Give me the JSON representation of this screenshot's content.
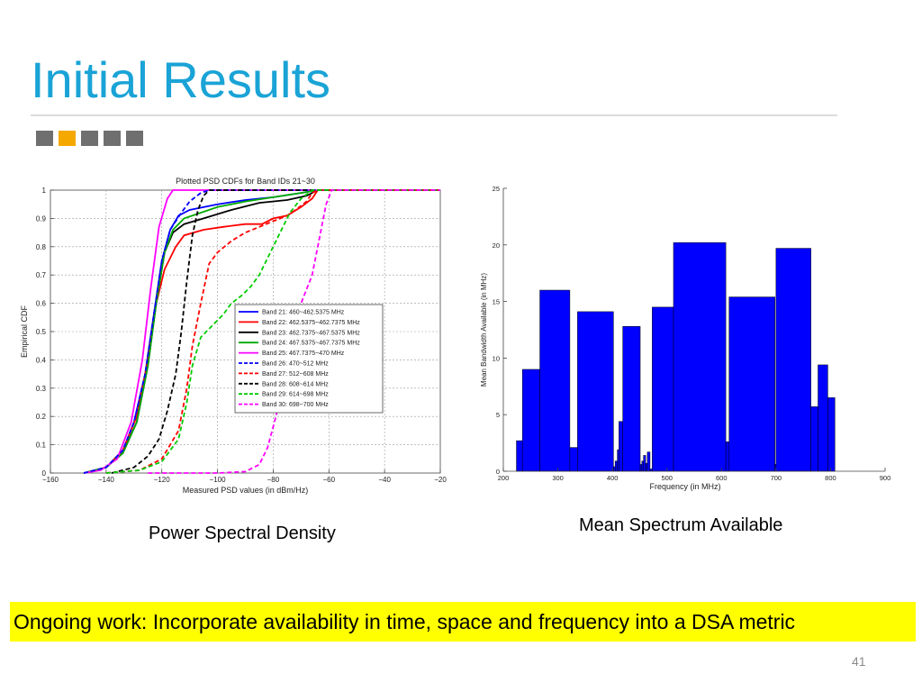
{
  "slide": {
    "title": "Initial Results",
    "left_caption": "Power Spectral Density",
    "right_caption": "Mean Spectrum Available",
    "banner": "Ongoing work: Incorporate availability in time, space and frequency into a DSA metric",
    "page_number": "41",
    "accent_color": "#1aa3d6",
    "square_colors": [
      "#6f6f6f",
      "#f5a800",
      "#6f6f6f",
      "#6f6f6f",
      "#6f6f6f"
    ]
  },
  "chart_data": [
    {
      "type": "line",
      "title": "Plotted PSD CDFs for Band IDs 21~30",
      "xlabel": "Measured PSD values (in dBm/Hz)",
      "ylabel": "Empirical CDF",
      "xlim": [
        -160,
        -20
      ],
      "ylim": [
        0,
        1
      ],
      "xticks": [
        "-160",
        "-140",
        "-120",
        "-100",
        "-80",
        "-60",
        "-40",
        "-20"
      ],
      "yticks": [
        "0",
        "0.1",
        "0.2",
        "0.3",
        "0.4",
        "0.5",
        "0.6",
        "0.7",
        "0.8",
        "0.9",
        "1"
      ],
      "grid": true,
      "legend_position": "center-right",
      "series": [
        {
          "name": "Band 21: 460~462.5375 MHz",
          "color": "#0000ff",
          "dash": "solid",
          "points": [
            [
              -148,
              0
            ],
            [
              -140,
              0.02
            ],
            [
              -134,
              0.08
            ],
            [
              -130,
              0.18
            ],
            [
              -126,
              0.35
            ],
            [
              -123,
              0.55
            ],
            [
              -120,
              0.75
            ],
            [
              -117,
              0.86
            ],
            [
              -114,
              0.91
            ],
            [
              -110,
              0.93
            ],
            [
              -100,
              0.95
            ],
            [
              -90,
              0.965
            ],
            [
              -80,
              0.975
            ],
            [
              -70,
              0.99
            ],
            [
              -64,
              1
            ],
            [
              -20,
              1
            ]
          ]
        },
        {
          "name": "Band 22: 462.5375~462.7375 MHz",
          "color": "#ff0000",
          "dash": "solid",
          "points": [
            [
              -148,
              0
            ],
            [
              -140,
              0.02
            ],
            [
              -134,
              0.08
            ],
            [
              -129,
              0.2
            ],
            [
              -125,
              0.4
            ],
            [
              -122,
              0.6
            ],
            [
              -119,
              0.72
            ],
            [
              -115,
              0.8
            ],
            [
              -112,
              0.84
            ],
            [
              -105,
              0.86
            ],
            [
              -98,
              0.87
            ],
            [
              -90,
              0.88
            ],
            [
              -84,
              0.88
            ],
            [
              -80,
              0.9
            ],
            [
              -75,
              0.91
            ],
            [
              -70,
              0.94
            ],
            [
              -66,
              0.97
            ],
            [
              -64,
              1
            ],
            [
              -20,
              1
            ]
          ]
        },
        {
          "name": "Band 23: 462.7375~467.5375 MHz",
          "color": "#000000",
          "dash": "solid",
          "points": [
            [
              -148,
              0
            ],
            [
              -140,
              0.02
            ],
            [
              -134,
              0.07
            ],
            [
              -129,
              0.18
            ],
            [
              -125,
              0.38
            ],
            [
              -122,
              0.6
            ],
            [
              -119,
              0.78
            ],
            [
              -116,
              0.85
            ],
            [
              -112,
              0.88
            ],
            [
              -105,
              0.9
            ],
            [
              -95,
              0.93
            ],
            [
              -85,
              0.955
            ],
            [
              -75,
              0.965
            ],
            [
              -68,
              0.98
            ],
            [
              -64,
              1
            ],
            [
              -20,
              1
            ]
          ]
        },
        {
          "name": "Band 24: 467.5375~467.7375 MHz",
          "color": "#00aa00",
          "dash": "solid",
          "points": [
            [
              -148,
              0
            ],
            [
              -140,
              0.02
            ],
            [
              -134,
              0.07
            ],
            [
              -129,
              0.18
            ],
            [
              -125,
              0.38
            ],
            [
              -122,
              0.6
            ],
            [
              -119,
              0.78
            ],
            [
              -116,
              0.86
            ],
            [
              -112,
              0.9
            ],
            [
              -100,
              0.94
            ],
            [
              -90,
              0.96
            ],
            [
              -80,
              0.975
            ],
            [
              -70,
              0.99
            ],
            [
              -64,
              1
            ],
            [
              -20,
              1
            ]
          ]
        },
        {
          "name": "Band 25: 467.7375~470 MHz",
          "color": "#ff00ff",
          "dash": "solid",
          "points": [
            [
              -148,
              0
            ],
            [
              -142,
              0.01
            ],
            [
              -136,
              0.05
            ],
            [
              -131,
              0.18
            ],
            [
              -127,
              0.4
            ],
            [
              -124,
              0.65
            ],
            [
              -121,
              0.87
            ],
            [
              -118,
              0.97
            ],
            [
              -116,
              1
            ],
            [
              -20,
              1
            ]
          ]
        },
        {
          "name": "Band 26: 470~512 MHz",
          "color": "#0000ff",
          "dash": "dashed",
          "points": [
            [
              -148,
              0
            ],
            [
              -140,
              0.02
            ],
            [
              -134,
              0.08
            ],
            [
              -130,
              0.18
            ],
            [
              -126,
              0.35
            ],
            [
              -123,
              0.55
            ],
            [
              -120,
              0.75
            ],
            [
              -117,
              0.86
            ],
            [
              -113,
              0.92
            ],
            [
              -110,
              0.96
            ],
            [
              -106,
              0.99
            ],
            [
              -103,
              1
            ],
            [
              -20,
              1
            ]
          ]
        },
        {
          "name": "Band 27: 512~608 MHz",
          "color": "#ff0000",
          "dash": "dashed",
          "points": [
            [
              -140,
              0
            ],
            [
              -128,
              0.01
            ],
            [
              -120,
              0.05
            ],
            [
              -114,
              0.15
            ],
            [
              -111,
              0.3
            ],
            [
              -109,
              0.45
            ],
            [
              -106,
              0.6
            ],
            [
              -103,
              0.74
            ],
            [
              -100,
              0.78
            ],
            [
              -95,
              0.82
            ],
            [
              -90,
              0.85
            ],
            [
              -85,
              0.87
            ],
            [
              -80,
              0.89
            ],
            [
              -75,
              0.91
            ],
            [
              -72,
              0.93
            ],
            [
              -68,
              0.96
            ],
            [
              -66,
              0.99
            ],
            [
              -64,
              1
            ],
            [
              -20,
              1
            ]
          ]
        },
        {
          "name": "Band 28: 608~614 MHz",
          "color": "#000000",
          "dash": "dashed",
          "points": [
            [
              -138,
              0
            ],
            [
              -130,
              0.02
            ],
            [
              -125,
              0.06
            ],
            [
              -121,
              0.12
            ],
            [
              -118,
              0.22
            ],
            [
              -115,
              0.35
            ],
            [
              -113,
              0.5
            ],
            [
              -111,
              0.68
            ],
            [
              -109,
              0.84
            ],
            [
              -107,
              0.93
            ],
            [
              -105,
              0.98
            ],
            [
              -103,
              1
            ],
            [
              -20,
              1
            ]
          ]
        },
        {
          "name": "Band 29: 614~698 MHz",
          "color": "#00cc00",
          "dash": "dashed",
          "points": [
            [
              -140,
              0
            ],
            [
              -128,
              0.01
            ],
            [
              -120,
              0.04
            ],
            [
              -114,
              0.12
            ],
            [
              -111,
              0.25
            ],
            [
              -109,
              0.38
            ],
            [
              -106,
              0.48
            ],
            [
              -102,
              0.52
            ],
            [
              -98,
              0.56
            ],
            [
              -95,
              0.6
            ],
            [
              -91,
              0.63
            ],
            [
              -88,
              0.66
            ],
            [
              -85,
              0.7
            ],
            [
              -82,
              0.76
            ],
            [
              -78,
              0.84
            ],
            [
              -74,
              0.92
            ],
            [
              -70,
              0.97
            ],
            [
              -66,
              1
            ],
            [
              -20,
              1
            ]
          ]
        },
        {
          "name": "Band 30: 698~700 MHz",
          "color": "#ff00ff",
          "dash": "dashed",
          "points": [
            [
              -125,
              0
            ],
            [
              -100,
              0
            ],
            [
              -90,
              0.005
            ],
            [
              -85,
              0.03
            ],
            [
              -82,
              0.09
            ],
            [
              -79,
              0.2
            ],
            [
              -76,
              0.35
            ],
            [
              -73,
              0.5
            ],
            [
              -70,
              0.6
            ],
            [
              -66,
              0.7
            ],
            [
              -63,
              0.85
            ],
            [
              -61,
              0.95
            ],
            [
              -59,
              1
            ],
            [
              -20,
              1
            ]
          ]
        }
      ]
    },
    {
      "type": "bar",
      "title": "",
      "xlabel": "Frequency (in MHz)",
      "ylabel": "Mean Bandwidth Available (in MHz)",
      "xlim": [
        200,
        900
      ],
      "ylim": [
        0,
        25
      ],
      "xticks": [
        "200",
        "300",
        "400",
        "500",
        "600",
        "700",
        "800",
        "900"
      ],
      "yticks": [
        "0",
        "5",
        "10",
        "15",
        "20",
        "25"
      ],
      "bar_color": "#0000ff",
      "bars": [
        [
          224,
          235,
          2.7
        ],
        [
          235,
          267,
          9.0
        ],
        [
          267,
          322,
          16.0
        ],
        [
          322,
          336,
          2.1
        ],
        [
          336,
          402,
          14.1
        ],
        [
          402,
          405,
          0.4
        ],
        [
          405,
          409,
          0.9
        ],
        [
          409,
          412,
          1.9
        ],
        [
          412,
          419,
          4.4
        ],
        [
          419,
          451,
          12.8
        ],
        [
          451,
          454,
          0.6
        ],
        [
          454,
          457,
          0.9
        ],
        [
          457,
          461,
          1.4
        ],
        [
          461,
          464,
          0.7
        ],
        [
          464,
          469,
          1.7
        ],
        [
          469,
          473,
          0.2
        ],
        [
          473,
          512,
          14.5
        ],
        [
          512,
          608,
          20.2
        ],
        [
          608,
          614,
          2.6
        ],
        [
          614,
          698,
          15.4
        ],
        [
          698,
          700,
          0.6
        ],
        [
          700,
          764,
          19.7
        ],
        [
          764,
          777,
          5.7
        ],
        [
          777,
          795,
          9.4
        ],
        [
          795,
          808,
          6.5
        ]
      ]
    }
  ]
}
